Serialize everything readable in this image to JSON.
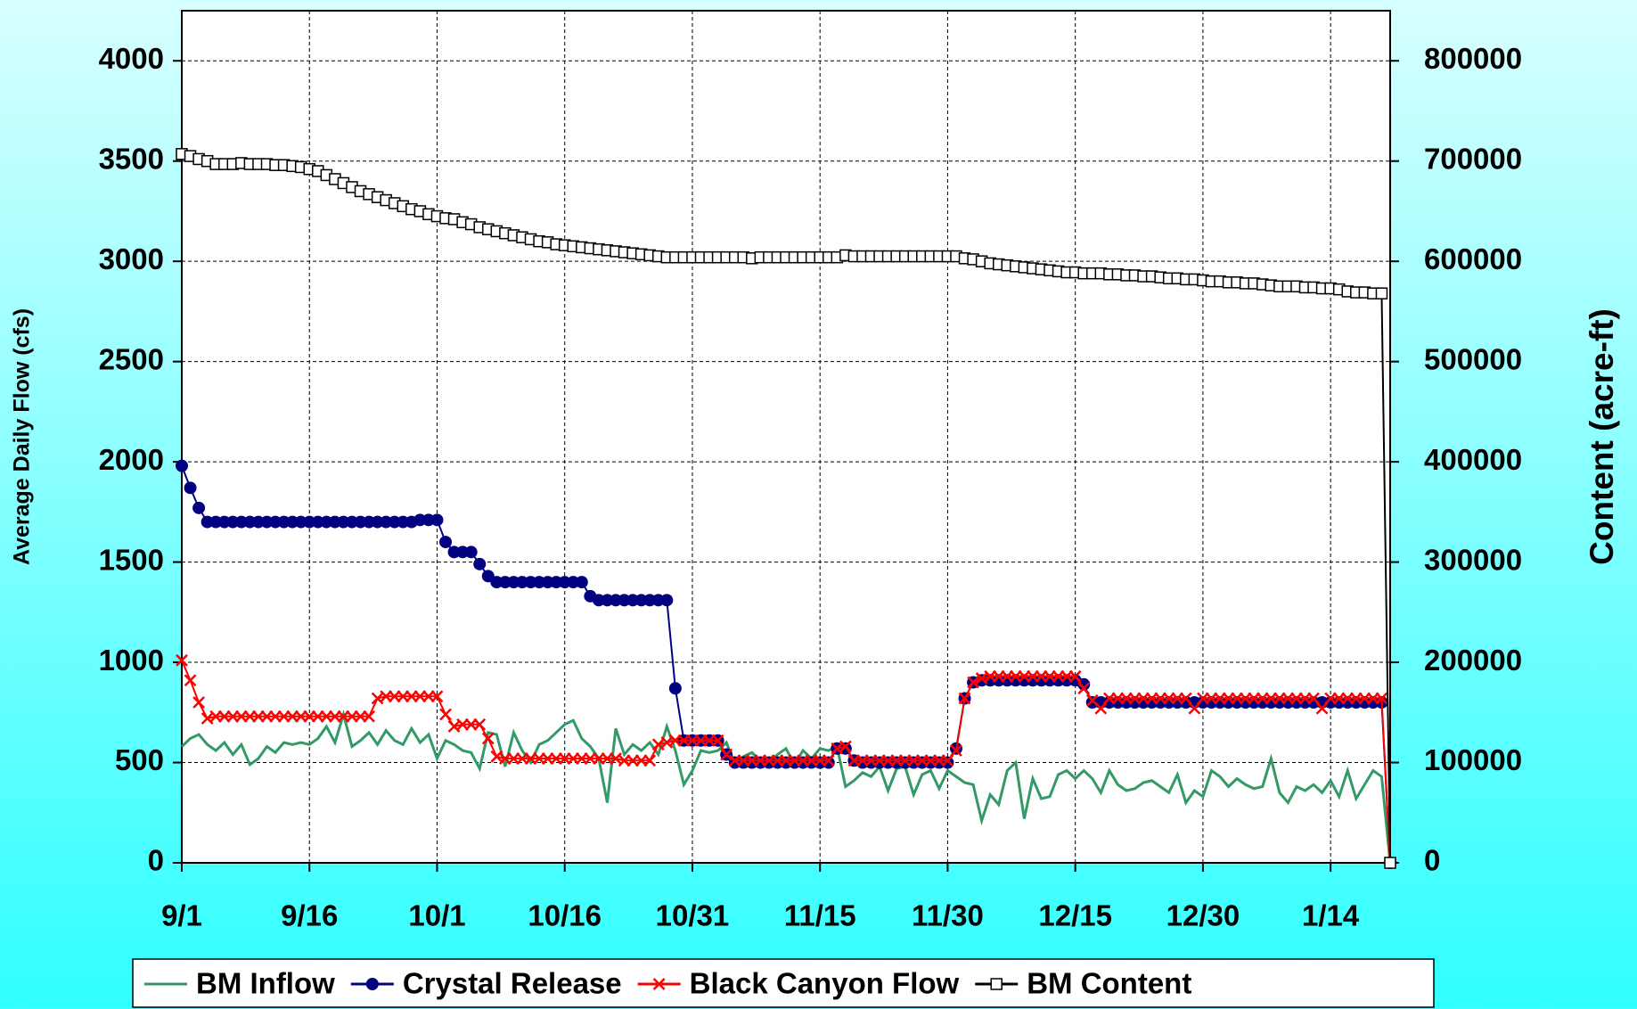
{
  "chart_data": {
    "type": "line",
    "y_label": "Average Daily Flow (cfs)",
    "y2_label": "Content (acre-ft)",
    "categories": [
      "9/1",
      null,
      null,
      null,
      null,
      null,
      null,
      null,
      null,
      null,
      null,
      null,
      null,
      null,
      null,
      "9/16",
      null,
      null,
      null,
      null,
      null,
      null,
      null,
      null,
      null,
      null,
      null,
      null,
      null,
      null,
      "10/1",
      null,
      null,
      null,
      null,
      null,
      null,
      null,
      null,
      null,
      null,
      null,
      null,
      null,
      null,
      "10/16",
      null,
      null,
      null,
      null,
      null,
      null,
      null,
      null,
      null,
      null,
      null,
      null,
      null,
      null,
      "10/31",
      null,
      null,
      null,
      null,
      null,
      null,
      null,
      null,
      null,
      null,
      null,
      null,
      null,
      null,
      "11/15",
      null,
      null,
      null,
      null,
      null,
      null,
      null,
      null,
      null,
      null,
      null,
      null,
      null,
      null,
      "11/30",
      null,
      null,
      null,
      null,
      null,
      null,
      null,
      null,
      null,
      null,
      null,
      null,
      null,
      null,
      "12/15",
      null,
      null,
      null,
      null,
      null,
      null,
      null,
      null,
      null,
      null,
      null,
      null,
      null,
      null,
      "12/30",
      null,
      null,
      null,
      null,
      null,
      null,
      null,
      null,
      null,
      null,
      null,
      null,
      null,
      null,
      "1/14",
      null,
      null,
      null,
      null,
      null,
      null,
      null
    ],
    "ylim": [
      0,
      4250
    ],
    "yticks": [
      0,
      500,
      1000,
      1500,
      2000,
      2500,
      3000,
      3500,
      4000
    ],
    "y2lim": [
      0,
      850000
    ],
    "y2ticks": [
      0,
      100000,
      200000,
      300000,
      400000,
      500000,
      600000,
      700000,
      800000
    ],
    "grid": true,
    "legend": "bottom",
    "series": [
      {
        "name": "BM Inflow",
        "color": "#339966",
        "marker": null,
        "values": [
          580,
          620,
          640,
          590,
          560,
          600,
          540,
          590,
          490,
          520,
          580,
          550,
          600,
          590,
          600,
          590,
          620,
          680,
          600,
          740,
          580,
          610,
          650,
          590,
          660,
          610,
          590,
          670,
          600,
          640,
          520,
          610,
          590,
          560,
          550,
          470,
          650,
          640,
          480,
          650,
          560,
          500,
          590,
          610,
          650,
          690,
          710,
          620,
          580,
          520,
          300,
          670,
          540,
          590,
          560,
          600,
          540,
          680,
          560,
          390,
          460,
          560,
          550,
          560,
          600,
          490,
          530,
          550,
          510,
          500,
          540,
          570,
          490,
          560,
          520,
          570,
          560,
          580,
          380,
          410,
          450,
          430,
          480,
          360,
          470,
          480,
          340,
          440,
          460,
          370,
          460,
          430,
          400,
          390,
          210,
          340,
          290,
          460,
          500,
          220,
          420,
          320,
          330,
          440,
          460,
          420,
          460,
          420,
          350,
          460,
          390,
          360,
          370,
          400,
          410,
          380,
          350,
          440,
          300,
          360,
          330,
          460,
          430,
          380,
          420,
          390,
          370,
          380,
          520,
          350,
          300,
          380,
          360,
          390,
          350,
          410,
          330,
          460,
          320,
          390,
          460,
          430,
          0
        ]
      },
      {
        "name": "Crystal Release",
        "color": "#000080",
        "marker": "circle",
        "values": [
          1980,
          1870,
          1770,
          1700,
          1700,
          1700,
          1700,
          1700,
          1700,
          1700,
          1700,
          1700,
          1700,
          1700,
          1700,
          1700,
          1700,
          1700,
          1700,
          1700,
          1700,
          1700,
          1700,
          1700,
          1700,
          1700,
          1700,
          1700,
          1710,
          1710,
          1710,
          1600,
          1550,
          1550,
          1550,
          1490,
          1430,
          1400,
          1400,
          1400,
          1400,
          1400,
          1400,
          1400,
          1400,
          1400,
          1400,
          1400,
          1330,
          1310,
          1310,
          1310,
          1310,
          1310,
          1310,
          1310,
          1310,
          1310,
          870,
          610,
          610,
          610,
          610,
          610,
          540,
          500,
          500,
          500,
          500,
          500,
          500,
          500,
          500,
          500,
          500,
          500,
          500,
          570,
          570,
          510,
          500,
          500,
          500,
          500,
          500,
          500,
          500,
          500,
          500,
          500,
          500,
          570,
          820,
          900,
          910,
          910,
          910,
          910,
          910,
          910,
          910,
          910,
          910,
          910,
          910,
          910,
          890,
          800,
          800,
          800,
          800,
          800,
          800,
          800,
          800,
          800,
          800,
          800,
          800,
          800,
          800,
          800,
          800,
          800,
          800,
          800,
          800,
          800,
          800,
          800,
          800,
          800,
          800,
          800,
          800,
          800,
          800,
          800,
          800,
          800,
          800,
          800,
          0
        ]
      },
      {
        "name": "Black Canyon Flow",
        "color": "#ff0000",
        "marker": "x",
        "values": [
          1010,
          910,
          800,
          720,
          730,
          730,
          730,
          730,
          730,
          730,
          730,
          730,
          730,
          730,
          730,
          730,
          730,
          730,
          730,
          730,
          730,
          730,
          730,
          820,
          830,
          830,
          830,
          830,
          830,
          830,
          830,
          740,
          680,
          690,
          690,
          690,
          620,
          530,
          520,
          520,
          520,
          520,
          520,
          520,
          520,
          520,
          520,
          520,
          520,
          520,
          520,
          520,
          510,
          510,
          510,
          510,
          590,
          600,
          610,
          610,
          610,
          610,
          610,
          610,
          540,
          510,
          510,
          510,
          510,
          510,
          510,
          510,
          510,
          510,
          510,
          510,
          510,
          570,
          580,
          510,
          510,
          510,
          510,
          510,
          510,
          510,
          510,
          510,
          510,
          510,
          510,
          560,
          820,
          900,
          920,
          930,
          930,
          930,
          930,
          930,
          930,
          930,
          930,
          930,
          930,
          930,
          870,
          810,
          770,
          820,
          820,
          820,
          820,
          820,
          820,
          820,
          820,
          820,
          820,
          770,
          820,
          820,
          820,
          820,
          820,
          820,
          820,
          820,
          820,
          820,
          820,
          820,
          820,
          820,
          770,
          820,
          820,
          820,
          820,
          820,
          820,
          820,
          0
        ]
      },
      {
        "name": "BM Content",
        "color": "#000000",
        "marker": "square",
        "axis": "y2",
        "values": [
          707000,
          705000,
          702000,
          700000,
          697000,
          697000,
          697000,
          698000,
          697000,
          697000,
          697000,
          696000,
          696000,
          695000,
          694000,
          692000,
          690000,
          686000,
          682000,
          678000,
          674000,
          670000,
          667000,
          664000,
          661000,
          658000,
          655000,
          652000,
          650000,
          647000,
          645000,
          643000,
          642000,
          639000,
          637000,
          634000,
          632000,
          630000,
          628000,
          626000,
          624000,
          622000,
          620000,
          619000,
          617000,
          616000,
          615000,
          614000,
          613000,
          612000,
          611000,
          610000,
          609000,
          608000,
          607000,
          606000,
          605000,
          604000,
          604000,
          604000,
          604000,
          604000,
          604000,
          604000,
          604000,
          604000,
          604000,
          603000,
          604000,
          604000,
          604000,
          604000,
          604000,
          604000,
          604000,
          604000,
          604000,
          604000,
          606000,
          605000,
          605000,
          605000,
          605000,
          605000,
          605000,
          605000,
          605000,
          605000,
          605000,
          605000,
          605000,
          605000,
          603000,
          602000,
          600000,
          598000,
          597000,
          596000,
          595000,
          594000,
          593000,
          592000,
          591000,
          590000,
          589000,
          589000,
          588000,
          588000,
          588000,
          587000,
          587000,
          586000,
          586000,
          585000,
          585000,
          584000,
          583000,
          583000,
          582000,
          582000,
          581000,
          580000,
          580000,
          579000,
          579000,
          578000,
          578000,
          577000,
          576000,
          575000,
          575000,
          575000,
          574000,
          574000,
          573000,
          573000,
          572000,
          570000,
          569000,
          569000,
          568000,
          568000,
          0
        ]
      }
    ]
  }
}
